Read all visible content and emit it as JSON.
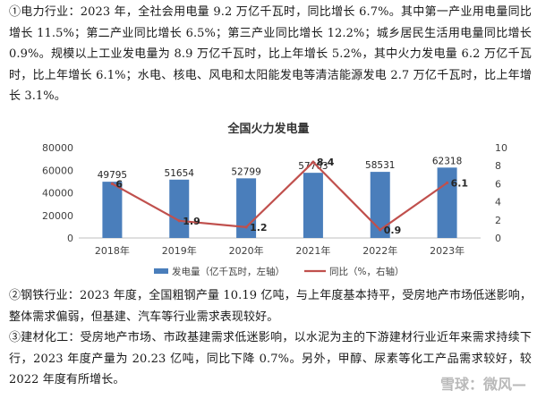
{
  "paragraphs": {
    "p1": "①电力行业：2023 年，全社会用电量 9.2 万亿千瓦时，同比增长 6.7%。其中第一产业用电量同比增长 11.5%；第二产业同比增长 6.5%；第三产业同比增长 12.2%；城乡居民生活用电量同比增长 0.9%。规模以上工业发电量为 8.9 万亿千瓦时，比上年增长 5.2%，其中火力发电量 6.2 万亿千瓦时，比上年增长 6.1%；水电、核电、风电和太阳能发电等清洁能源发电 2.7 万亿千瓦时，比上年增长 3.1%。",
    "p2": "②钢铁行业：2023 年度，全国粗钢产量 10.19 亿吨，与上年度基本持平，受房地产市场低迷影响，整体需求偏弱，但基建、汽车等行业需求表现较好。",
    "p3": "③建材化工：受房地产市场、市政基建需求低迷影响，以水泥为主的下游建材行业近年来需求持续下行，2023 年度产量为 20.23 亿吨，同比下降 0.7%。另外，甲醇、尿素等化工产品需求较好，较 2022 年度有所增长。"
  },
  "watermark": "雪球：微风—",
  "colors": {
    "bar": "#4a7ebb",
    "line": "#c0504d"
  },
  "chart_data": {
    "type": "bar",
    "title": "全国火力发电量",
    "categories": [
      "2018年",
      "2019年",
      "2020年",
      "2021年",
      "2022年",
      "2023年"
    ],
    "series": [
      {
        "name": "发电量（亿千瓦时，左轴）",
        "type": "bar",
        "axis": "left",
        "values": [
          49795,
          51654,
          52799,
          57703,
          58531,
          62318
        ]
      },
      {
        "name": "同比（%，右轴）",
        "type": "line",
        "axis": "right",
        "values": [
          6,
          1.9,
          1.2,
          8.4,
          0.9,
          6.1
        ]
      }
    ],
    "left_axis": {
      "ylim": [
        0,
        80000
      ],
      "ticks": [
        0,
        20000,
        40000,
        60000,
        80000
      ]
    },
    "right_axis": {
      "ylim": [
        0,
        10
      ],
      "ticks": [
        0,
        2,
        4,
        6,
        8,
        10
      ]
    },
    "grid": false,
    "legend": "bottom"
  }
}
